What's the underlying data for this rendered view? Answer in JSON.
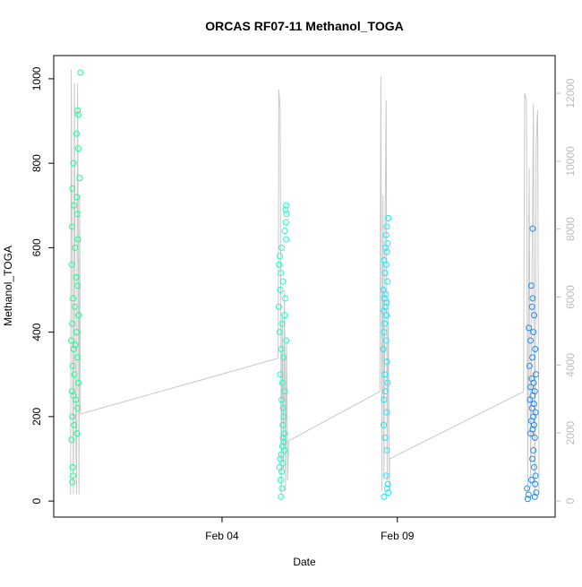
{
  "chart_data": {
    "type": "scatter",
    "title": "ORCAS RF07-11 Methanol_TOGA",
    "xlabel": "Date",
    "ylabel": "Methanol_TOGA",
    "xlim": [
      -0.8,
      13.5
    ],
    "xticks": [
      {
        "value": 4,
        "label": "Feb 04"
      },
      {
        "value": 9,
        "label": "Feb 09"
      }
    ],
    "ylim": [
      -38,
      1055
    ],
    "yticks": [
      0,
      200,
      400,
      600,
      800,
      1000
    ],
    "y2lim": [
      -475,
      13110
    ],
    "y2ticks": [
      0,
      2000,
      4000,
      6000,
      8000,
      10000,
      12000
    ],
    "series": [
      {
        "color": "#1aff8c",
        "x": [
          -0.04,
          -0.12,
          -0.1,
          -0.15,
          -0.1,
          -0.24,
          -0.06,
          -0.27,
          -0.14,
          -0.22,
          -0.13,
          -0.28,
          -0.11,
          -0.19,
          -0.29,
          -0.16,
          -0.12,
          -0.25,
          -0.2,
          -0.09,
          -0.27,
          -0.15,
          -0.3,
          -0.18,
          -0.23,
          -0.13,
          -0.26,
          -0.21,
          -0.1,
          -0.28,
          -0.24,
          -0.17,
          -0.12,
          -0.27,
          -0.22,
          -0.14,
          -0.29,
          -0.26,
          -0.25,
          -0.27
        ],
        "values": [
          1015,
          925,
          915,
          870,
          835,
          800,
          765,
          740,
          720,
          700,
          680,
          650,
          620,
          600,
          560,
          530,
          510,
          480,
          460,
          440,
          420,
          400,
          380,
          370,
          360,
          340,
          320,
          300,
          280,
          260,
          250,
          240,
          220,
          200,
          180,
          160,
          145,
          80,
          60,
          45
        ]
      },
      {
        "color": "#1affc6",
        "x": [
          5.83,
          5.81,
          5.84,
          5.82,
          5.79,
          5.83,
          5.7,
          5.65,
          5.63,
          5.68,
          5.74,
          5.66,
          5.8,
          5.62,
          5.78,
          5.71,
          5.64,
          5.83,
          5.69,
          5.75,
          5.66,
          5.72,
          5.78,
          5.7,
          5.74,
          5.76,
          5.73,
          5.77,
          5.74,
          5.76,
          5.72,
          5.78,
          5.69,
          5.66,
          5.73,
          5.64,
          5.7,
          5.67,
          5.71,
          5.68
        ],
        "values": [
          700,
          690,
          680,
          660,
          640,
          620,
          600,
          580,
          560,
          540,
          520,
          500,
          480,
          460,
          440,
          420,
          400,
          380,
          360,
          340,
          300,
          280,
          260,
          240,
          220,
          200,
          180,
          160,
          150,
          140,
          130,
          120,
          110,
          100,
          90,
          80,
          70,
          50,
          30,
          10
        ]
      },
      {
        "color": "#1ae8ff",
        "x": [
          8.74,
          8.7,
          8.68,
          8.72,
          8.66,
          8.7,
          8.62,
          8.68,
          8.65,
          8.72,
          8.6,
          8.67,
          8.63,
          8.7,
          8.66,
          8.61,
          8.69,
          8.64,
          8.62,
          8.68,
          8.6,
          8.7,
          8.64,
          8.72,
          8.66,
          8.62,
          8.69,
          8.61,
          8.65,
          8.7,
          8.68,
          8.73,
          8.71,
          8.74,
          8.62
        ],
        "values": [
          670,
          650,
          630,
          610,
          600,
          590,
          570,
          560,
          540,
          520,
          500,
          490,
          480,
          470,
          460,
          450,
          440,
          420,
          400,
          380,
          360,
          330,
          300,
          280,
          260,
          240,
          210,
          180,
          150,
          120,
          60,
          40,
          30,
          20,
          10
        ]
      },
      {
        "color": "#1a8cff",
        "x": [
          12.86,
          12.82,
          12.86,
          12.84,
          12.9,
          12.75,
          12.88,
          12.8,
          12.93,
          12.85,
          12.77,
          12.95,
          12.83,
          12.89,
          12.8,
          12.92,
          12.86,
          12.78,
          12.9,
          12.84,
          12.94,
          12.88,
          12.82,
          12.9,
          12.86,
          12.8,
          12.92,
          12.88,
          12.85,
          12.9,
          12.94,
          12.82,
          12.93,
          12.7,
          12.96,
          12.74,
          12.92,
          12.72
        ],
        "values": [
          645,
          510,
          480,
          460,
          440,
          410,
          400,
          380,
          360,
          340,
          320,
          300,
          290,
          280,
          270,
          260,
          250,
          240,
          230,
          220,
          210,
          200,
          190,
          180,
          170,
          160,
          150,
          120,
          100,
          80,
          60,
          50,
          40,
          30,
          20,
          15,
          10,
          5
        ]
      },
      {
        "type": "line",
        "axis": "y2",
        "color": "#c8c8c8",
        "x": [
          -0.32,
          -0.3,
          -0.27,
          -0.24,
          -0.21,
          -0.18,
          -0.15,
          -0.12,
          -0.1,
          -0.08,
          -0.06,
          -0.04,
          5.6,
          5.62,
          5.66,
          5.69,
          5.72,
          5.75,
          5.78,
          5.81,
          5.84,
          5.87,
          5.9,
          8.5,
          8.53,
          8.56,
          8.59,
          8.62,
          8.65,
          8.68,
          8.71,
          8.74,
          8.77,
          8.78,
          12.6,
          12.63,
          12.68,
          12.72,
          12.76,
          12.8,
          12.84,
          12.88,
          12.92,
          12.96,
          13.0,
          13.04
        ],
        "values": [
          200,
          12700,
          6000,
          200,
          12300,
          3000,
          200,
          12300,
          7500,
          200,
          9000,
          2560,
          4200,
          12100,
          11500,
          200,
          5500,
          900,
          6200,
          300,
          4800,
          600,
          1770,
          3220,
          12500,
          300,
          9000,
          700,
          8000,
          11800,
          600,
          6000,
          300,
          1240,
          3220,
          12000,
          11800,
          300,
          9800,
          400,
          6500,
          11700,
          200,
          10500,
          11500,
          300
        ]
      }
    ]
  }
}
